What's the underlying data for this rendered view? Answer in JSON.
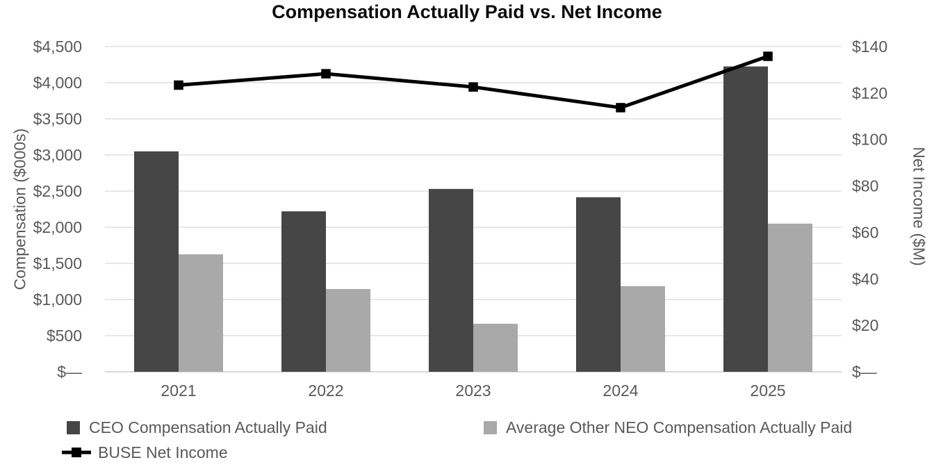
{
  "chart_data": {
    "type": "bar",
    "subtype": "combo-bar-line-dual-axis",
    "title": "Compensation Actually Paid vs. Net Income",
    "categories": [
      "2021",
      "2022",
      "2023",
      "2024",
      "2025"
    ],
    "series": [
      {
        "name": "CEO Compensation Actually Paid",
        "type": "bar",
        "axis": "left",
        "color": "#464646",
        "values": [
          3050,
          2220,
          2530,
          2415,
          4225
        ]
      },
      {
        "name": "Average Other NEO Compensation Actually Paid",
        "type": "bar",
        "axis": "left",
        "color": "#a9a9a9",
        "values": [
          1625,
          1145,
          665,
          1185,
          2050
        ]
      },
      {
        "name": "BUSE Net Income",
        "type": "line",
        "axis": "right",
        "color": "#000000",
        "marker": "square",
        "values": [
          123.4,
          128.3,
          122.6,
          113.7,
          135.8
        ]
      }
    ],
    "axes": {
      "left": {
        "label": "Compensation ($000s)",
        "min": 0,
        "max": 4500,
        "step": 500,
        "ticks": [
          "$—",
          "$500",
          "$1,000",
          "$1,500",
          "$2,000",
          "$2,500",
          "$3,000",
          "$3,500",
          "$4,000",
          "$4,500"
        ]
      },
      "right": {
        "label": "Net Income ($M)",
        "min": 0,
        "max": 140,
        "step": 20,
        "ticks": [
          "$—",
          "$20",
          "$40",
          "$60",
          "$80",
          "$100",
          "$120",
          "$140"
        ]
      }
    },
    "grid": true,
    "legend_position": "bottom-left",
    "colors": {
      "grid_line": "#e7e7e7",
      "baseline": "#d8d8d8",
      "axis_text": "#595959",
      "title_text": "#0b0b0b"
    }
  }
}
